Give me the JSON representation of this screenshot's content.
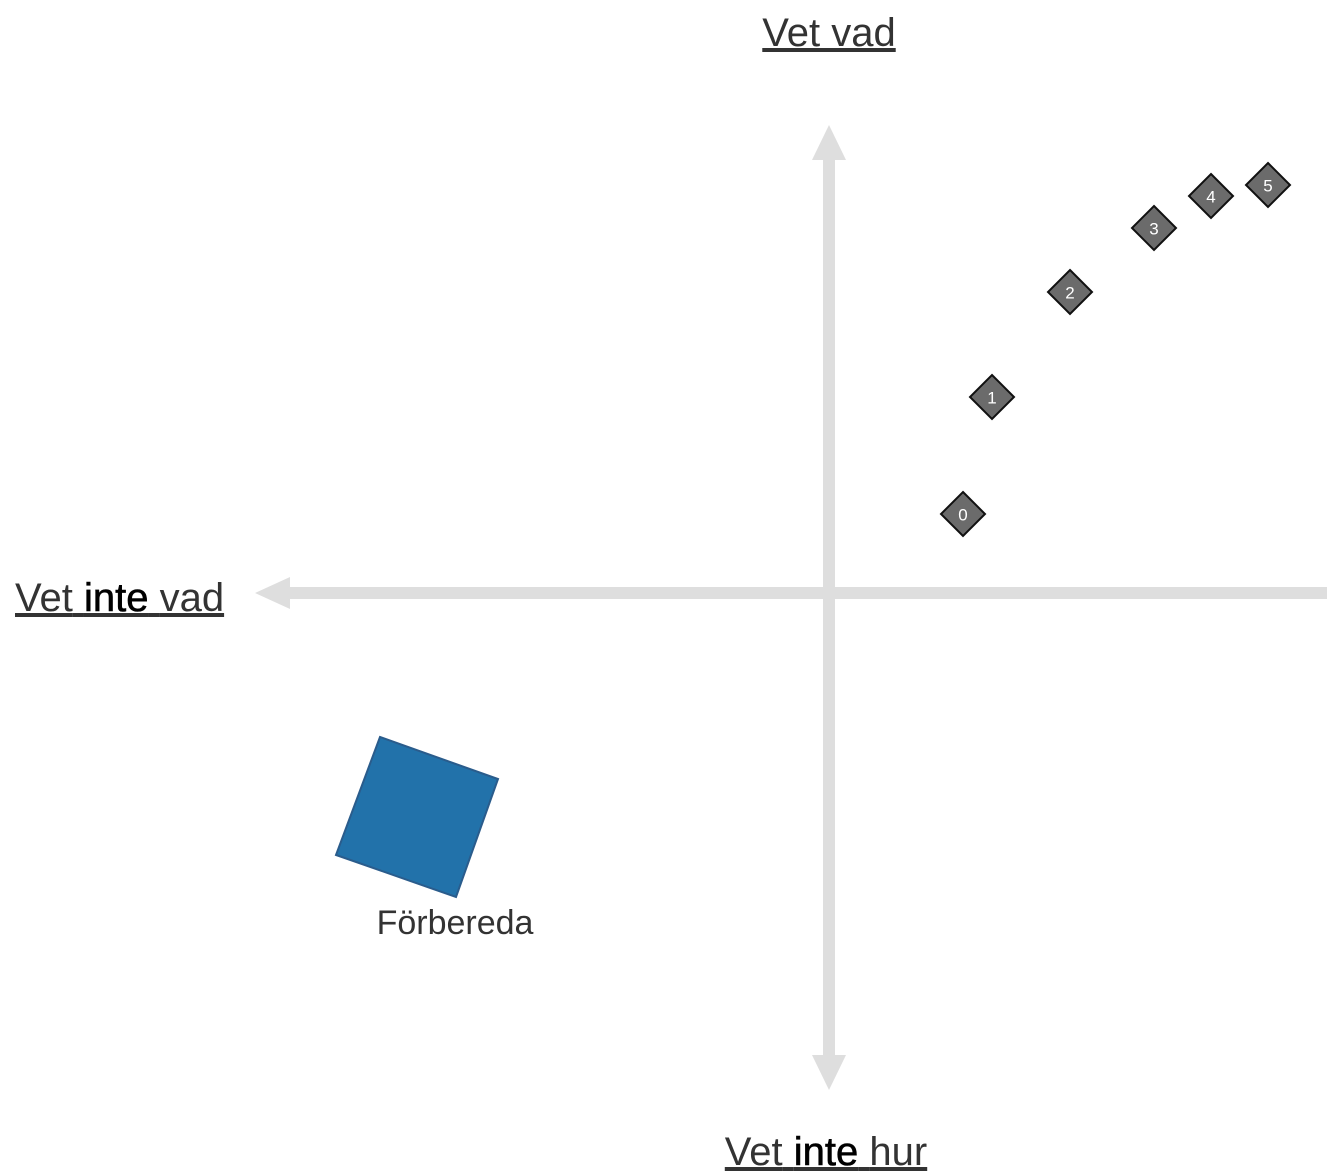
{
  "axis_labels": {
    "top": [
      "Vet vad"
    ],
    "left": [
      "Vet",
      "inte",
      "vad"
    ],
    "bottom": [
      "Vet",
      "inte",
      "hur"
    ]
  },
  "item": {
    "label": "Förbereda"
  },
  "markers": [
    "0",
    "1",
    "2",
    "3",
    "4",
    "5"
  ]
}
